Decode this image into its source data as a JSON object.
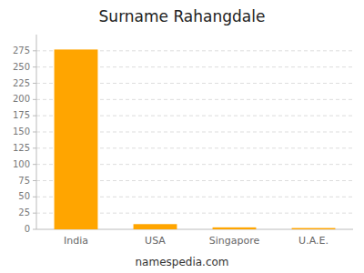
{
  "chart_data": {
    "type": "bar",
    "title": "Surname Rahangdale",
    "categories": [
      "India",
      "USA",
      "Singapore",
      "U.A.E."
    ],
    "values": [
      277,
      8,
      3,
      2
    ],
    "color": "#FFA500",
    "ylim": [
      0,
      300
    ],
    "yticks": [
      0,
      25,
      50,
      75,
      100,
      125,
      150,
      175,
      200,
      225,
      250,
      275
    ],
    "grid": true,
    "annotations": [
      "namespedia.com"
    ]
  }
}
